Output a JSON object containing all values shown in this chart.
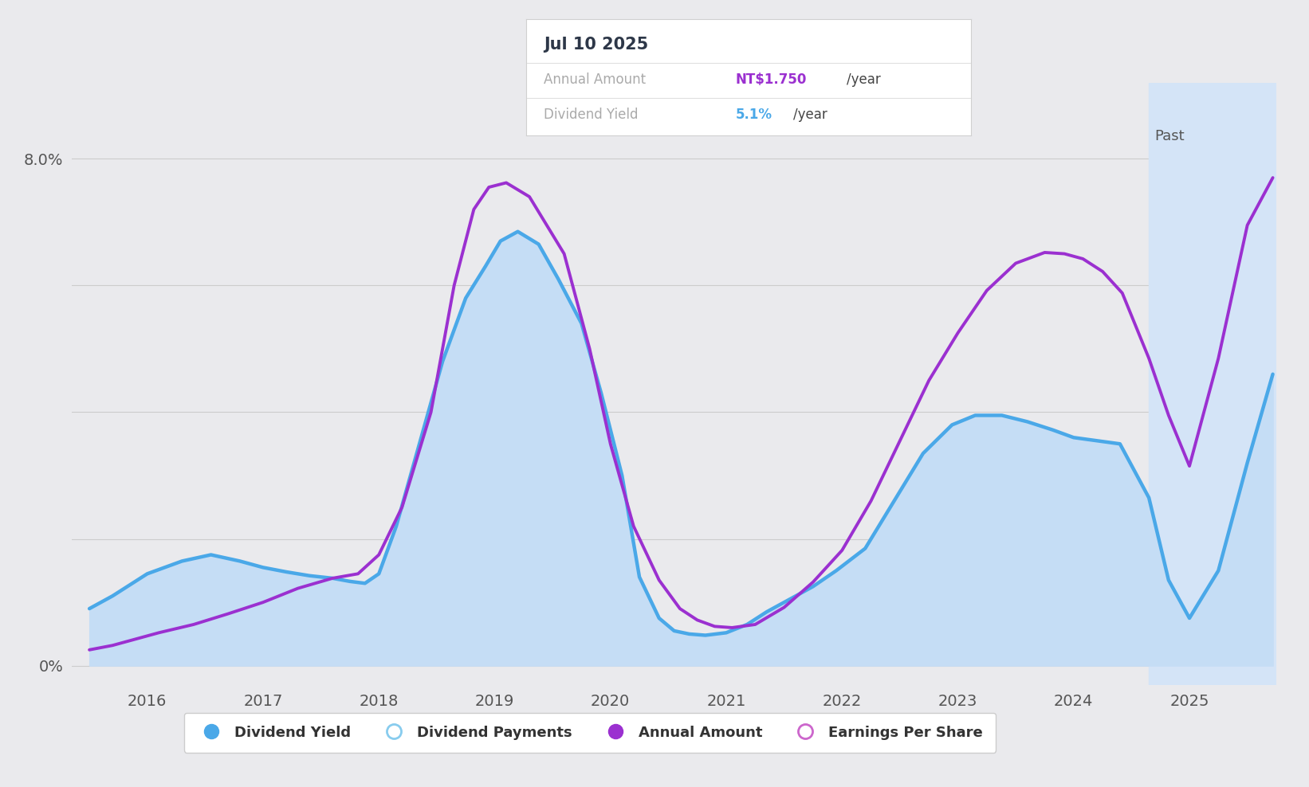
{
  "bg_color": "#eaeaed",
  "chart_bg_color": "#eaeaed",
  "past_shade_color": "#d4e4f7",
  "fill_color": "#c5ddf5",
  "line_blue_color": "#4aa8e8",
  "line_purple_color": "#9b30d0",
  "xmin": 2015.35,
  "xmax": 2025.75,
  "ymin": -0.3,
  "ymax": 9.2,
  "past_start": 2024.65,
  "past_label": "Past",
  "tooltip": {
    "date": "Jul 10 2025",
    "annual_amount_label": "Annual Amount",
    "annual_amount_value": "NT$1.750",
    "annual_amount_suffix": "/year",
    "dividend_yield_label": "Dividend Yield",
    "dividend_yield_value": "5.1%",
    "dividend_yield_suffix": "/year",
    "color_amount": "#9b30d0",
    "color_yield": "#4aa8e8",
    "color_label": "#aaaaaa",
    "color_date": "#2d3748"
  },
  "legend": [
    {
      "label": "Dividend Yield",
      "type": "filled_circle",
      "color": "#4aa8e8"
    },
    {
      "label": "Dividend Payments",
      "type": "open_circle",
      "color": "#88ccee"
    },
    {
      "label": "Annual Amount",
      "type": "filled_circle",
      "color": "#9b30d0"
    },
    {
      "label": "Earnings Per Share",
      "type": "open_circle",
      "color": "#cc66cc"
    }
  ],
  "blue_x": [
    2015.5,
    2015.7,
    2016.0,
    2016.3,
    2016.55,
    2016.8,
    2017.0,
    2017.2,
    2017.4,
    2017.6,
    2017.75,
    2017.88,
    2018.0,
    2018.15,
    2018.35,
    2018.55,
    2018.75,
    2018.92,
    2019.05,
    2019.2,
    2019.38,
    2019.55,
    2019.75,
    2019.92,
    2020.1,
    2020.25,
    2020.42,
    2020.55,
    2020.68,
    2020.82,
    2021.0,
    2021.18,
    2021.35,
    2021.55,
    2021.75,
    2021.95,
    2022.2,
    2022.45,
    2022.7,
    2022.95,
    2023.15,
    2023.38,
    2023.6,
    2023.82,
    2024.0,
    2024.2,
    2024.4,
    2024.65,
    2024.82,
    2025.0,
    2025.25,
    2025.5,
    2025.72
  ],
  "blue_y": [
    0.9,
    1.1,
    1.45,
    1.65,
    1.75,
    1.65,
    1.55,
    1.48,
    1.42,
    1.38,
    1.33,
    1.3,
    1.45,
    2.2,
    3.5,
    4.8,
    5.8,
    6.3,
    6.7,
    6.85,
    6.65,
    6.1,
    5.4,
    4.3,
    3.0,
    1.4,
    0.75,
    0.55,
    0.5,
    0.48,
    0.52,
    0.65,
    0.85,
    1.05,
    1.25,
    1.5,
    1.85,
    2.6,
    3.35,
    3.8,
    3.95,
    3.95,
    3.85,
    3.72,
    3.6,
    3.55,
    3.5,
    2.65,
    1.35,
    0.75,
    1.5,
    3.2,
    4.6
  ],
  "purple_x": [
    2015.5,
    2015.7,
    2015.9,
    2016.1,
    2016.4,
    2016.7,
    2017.0,
    2017.3,
    2017.6,
    2017.82,
    2018.0,
    2018.2,
    2018.45,
    2018.65,
    2018.82,
    2018.95,
    2019.1,
    2019.3,
    2019.6,
    2019.82,
    2020.0,
    2020.2,
    2020.42,
    2020.6,
    2020.75,
    2020.9,
    2021.05,
    2021.25,
    2021.5,
    2021.75,
    2022.0,
    2022.25,
    2022.5,
    2022.75,
    2023.0,
    2023.25,
    2023.5,
    2023.75,
    2023.92,
    2024.08,
    2024.25,
    2024.42,
    2024.65,
    2024.82,
    2025.0,
    2025.25,
    2025.5,
    2025.72
  ],
  "purple_y": [
    0.25,
    0.32,
    0.42,
    0.52,
    0.65,
    0.82,
    1.0,
    1.22,
    1.38,
    1.45,
    1.75,
    2.5,
    4.0,
    6.0,
    7.2,
    7.55,
    7.62,
    7.4,
    6.5,
    5.0,
    3.5,
    2.2,
    1.35,
    0.9,
    0.72,
    0.62,
    0.6,
    0.65,
    0.92,
    1.32,
    1.82,
    2.6,
    3.55,
    4.5,
    5.25,
    5.92,
    6.35,
    6.52,
    6.5,
    6.42,
    6.22,
    5.88,
    4.85,
    3.95,
    3.15,
    4.85,
    6.95,
    7.7
  ]
}
